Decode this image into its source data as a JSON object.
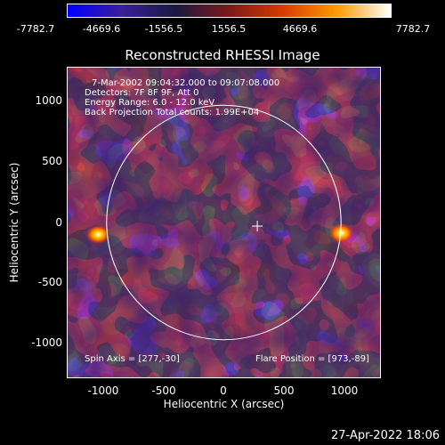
{
  "window": {
    "title": "Reconstructed RHESSI Image",
    "footer_date": "27-Apr-2022 18:06"
  },
  "colorbar": {
    "ticks": [
      "-7782.7",
      "-4669.6",
      "-1556.5",
      "1556.5",
      "4669.6",
      "7782.7"
    ],
    "tick_values": [
      -7782.7,
      -4669.6,
      -1556.5,
      1556.5,
      4669.6,
      7782.7
    ],
    "stops": [
      "#0000ff",
      "#3a1e9a",
      "#1a1a40",
      "#7a1a1a",
      "#d83a00",
      "#ff9a00",
      "#ffffff"
    ]
  },
  "plot": {
    "info_lines": [
      "7-Mar-2002 09:04:32.000 to 09:07:08.000",
      "Detectors: 7F 8F 9F, Att 0",
      "Energy Range: 6.0 - 12.0 keV",
      "Back Projection    Total counts: 1.99E+04"
    ],
    "spin_axis": "Spin Axis = [277,-30]",
    "flare_position": "Flare Position = [973,-89]",
    "xlabel": "Heliocentric X (arcsec)",
    "ylabel": "Heliocentric Y (arcsec)",
    "xticks": [
      "-1000",
      "-500",
      "0",
      "500",
      "1000"
    ],
    "xtick_values": [
      -1000,
      -500,
      0,
      500,
      1000
    ],
    "yticks": [
      "1000",
      "500",
      "0",
      "-500",
      "-1000"
    ],
    "ytick_values": [
      1000,
      500,
      0,
      -500,
      -1000
    ],
    "xlim": [
      -1300,
      1300
    ],
    "ylim": [
      -1300,
      1300
    ],
    "limb_radius": 970,
    "spin_axis_xy": [
      277,
      -30
    ],
    "hot_sources": [
      [
        973,
        -89
      ],
      [
        -1040,
        -100
      ]
    ]
  }
}
